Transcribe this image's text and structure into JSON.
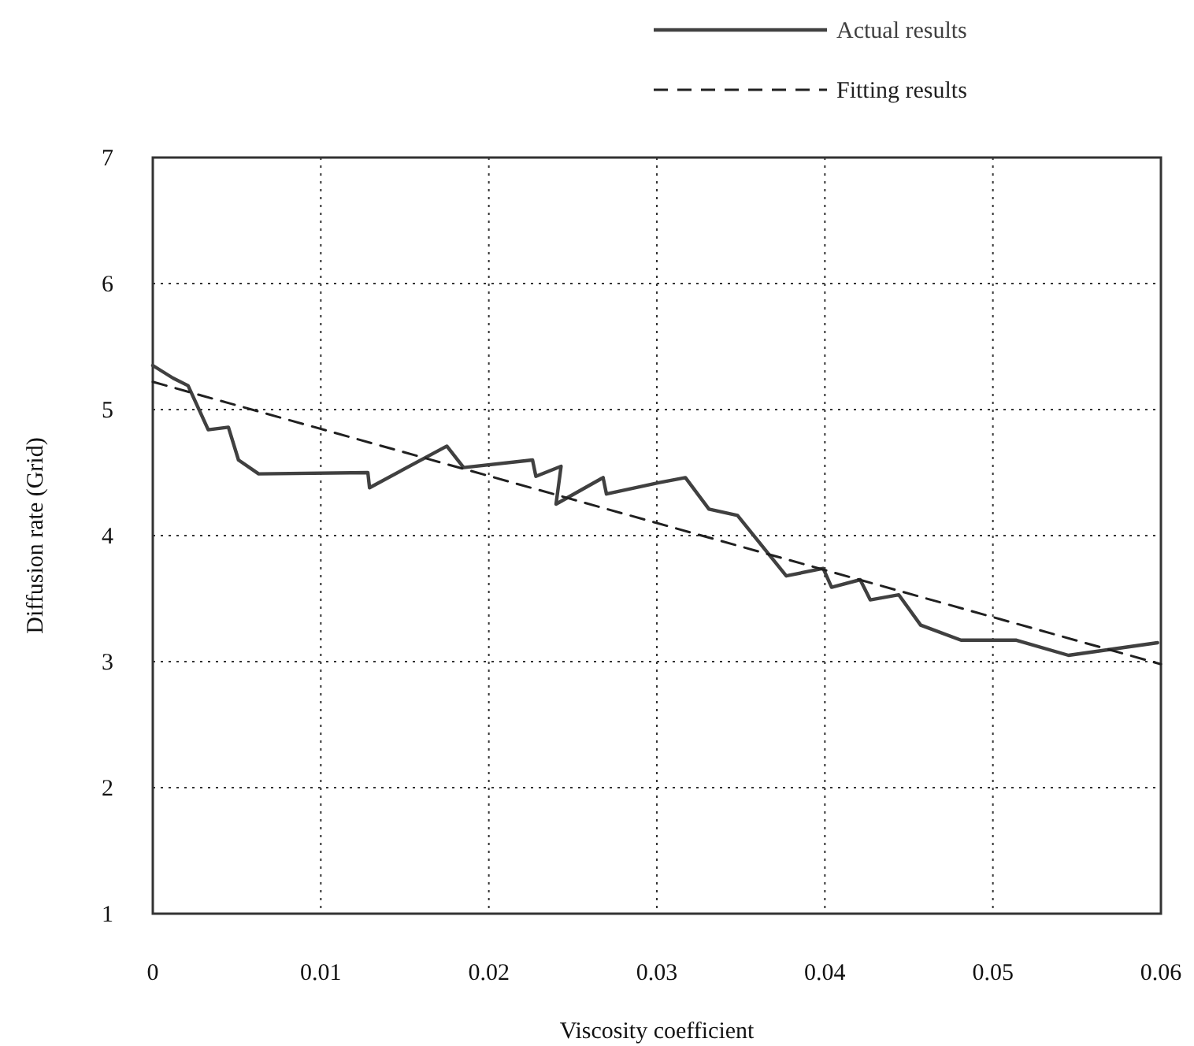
{
  "chart_data": {
    "type": "line",
    "xlabel": "Viscosity coefficient",
    "ylabel": "Diffusion rate (Grid)",
    "xlim": [
      0,
      0.06
    ],
    "xticks": [
      0,
      0.01,
      0.02,
      0.03,
      0.04,
      0.05,
      0.06
    ],
    "ylim": [
      1,
      7
    ],
    "yticks": [
      1,
      2,
      3,
      4,
      5,
      6,
      7
    ],
    "grid": true,
    "legend": "top right",
    "series": [
      {
        "name": "Actual results",
        "color": "#404040",
        "line_style": "solid",
        "x": [
          0,
          0.0012,
          0.0021,
          0.0033,
          0.0045,
          0.0051,
          0.0063,
          0.0128,
          0.0129,
          0.0175,
          0.0185,
          0.0226,
          0.0228,
          0.0243,
          0.024,
          0.0268,
          0.027,
          0.0301,
          0.0317,
          0.0331,
          0.0348,
          0.0377,
          0.0399,
          0.0404,
          0.0421,
          0.0427,
          0.0444,
          0.0457,
          0.0481,
          0.0514,
          0.0545,
          0.0598
        ],
        "values": [
          5.35,
          5.25,
          5.19,
          4.84,
          4.86,
          4.6,
          4.49,
          4.5,
          4.38,
          4.71,
          4.54,
          4.6,
          4.47,
          4.55,
          4.25,
          4.46,
          4.33,
          4.42,
          4.46,
          4.21,
          4.16,
          3.68,
          3.74,
          3.59,
          3.65,
          3.49,
          3.53,
          3.29,
          3.17,
          3.17,
          3.05,
          3.15
        ]
      },
      {
        "name": "Fitting results",
        "color": "#202020",
        "line_style": "dashed",
        "x": [
          0,
          0.06
        ],
        "values": [
          5.22,
          2.98
        ]
      }
    ]
  }
}
